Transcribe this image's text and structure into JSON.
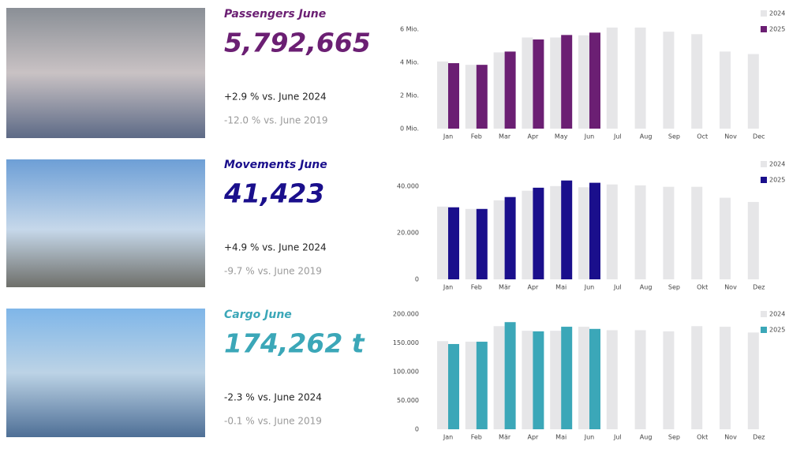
{
  "panels": [
    {
      "title": "Passengers June",
      "value": "5,792,665",
      "vs_prev": "+2.9 % vs. June 2024",
      "vs_2019": "-12.0 % vs. June 2019"
    },
    {
      "title": "Movements June",
      "value": "41,423",
      "vs_prev": "+4.9 % vs. June 2024",
      "vs_2019": "-9.7 % vs. June 2019"
    },
    {
      "title": "Cargo June",
      "value": "174,262 t",
      "vs_prev": "-2.3 % vs. June 2024",
      "vs_2019": "-0.1 % vs. June 2019"
    }
  ],
  "chart_data": [
    {
      "type": "bar",
      "legend": "top-right",
      "categories": [
        "Jan",
        "Feb",
        "Mar",
        "Apr",
        "May",
        "Jun",
        "Jul",
        "Aug",
        "Sep",
        "Oct",
        "Nov",
        "Dec"
      ],
      "series": [
        {
          "name": "2024",
          "color": "#e6e6e8",
          "values": [
            4050000,
            3850000,
            4600000,
            5500000,
            5500000,
            5630000,
            6100000,
            6100000,
            5850000,
            5700000,
            4650000,
            4500000
          ]
        },
        {
          "name": "2025",
          "color": "#6b1f73",
          "values": [
            3950000,
            3850000,
            4650000,
            5380000,
            5650000,
            5792665,
            null,
            null,
            null,
            null,
            null,
            null
          ]
        }
      ],
      "ylim": [
        0,
        6200000
      ],
      "yticks": [
        {
          "value": 0,
          "label": "0 Mio."
        },
        {
          "value": 2000000,
          "label": "2 Mio."
        },
        {
          "value": 4000000,
          "label": "4 Mio."
        },
        {
          "value": 6000000,
          "label": "6 Mio."
        }
      ]
    },
    {
      "type": "bar",
      "legend": "top-right",
      "categories": [
        "Jan",
        "Feb",
        "Mär",
        "Apr",
        "Mai",
        "Jun",
        "Jul",
        "Aug",
        "Sep",
        "Okt",
        "Nov",
        "Dez"
      ],
      "series": [
        {
          "name": "2024",
          "color": "#e6e6e8",
          "values": [
            31200,
            30200,
            33900,
            38000,
            40000,
            39500,
            40700,
            40300,
            39700,
            39700,
            35000,
            33200
          ]
        },
        {
          "name": "2025",
          "color": "#1a0f8c",
          "values": [
            30900,
            30200,
            35300,
            39300,
            42400,
            41423,
            null,
            null,
            null,
            null,
            null,
            null
          ]
        }
      ],
      "ylim": [
        0,
        44000
      ],
      "yticks": [
        0,
        {
          "value": 20000,
          "label": "20.000"
        },
        {
          "value": 40000,
          "label": "40.000"
        }
      ]
    },
    {
      "type": "bar",
      "legend": "top-right",
      "categories": [
        "Jan",
        "Feb",
        "Mär",
        "Apr",
        "Mai",
        "Jun",
        "Jul",
        "Aug",
        "Sep",
        "Okt",
        "Nov",
        "Dez"
      ],
      "series": [
        {
          "name": "2024",
          "color": "#e6e6e8",
          "values": [
            153000,
            152000,
            179000,
            171000,
            171000,
            178000,
            172000,
            172000,
            170000,
            179000,
            178000,
            168000
          ]
        },
        {
          "name": "2025",
          "color": "#3ba7b8",
          "values": [
            148000,
            152000,
            186000,
            170000,
            178000,
            174262,
            null,
            null,
            null,
            null,
            null,
            null
          ]
        }
      ],
      "ylim": [
        0,
        200000
      ],
      "yticks": [
        0,
        {
          "value": 50000,
          "label": "50.000"
        },
        {
          "value": 100000,
          "label": "100.000"
        },
        {
          "value": 150000,
          "label": "150.000"
        },
        {
          "value": 200000,
          "label": "200.000"
        }
      ]
    }
  ]
}
